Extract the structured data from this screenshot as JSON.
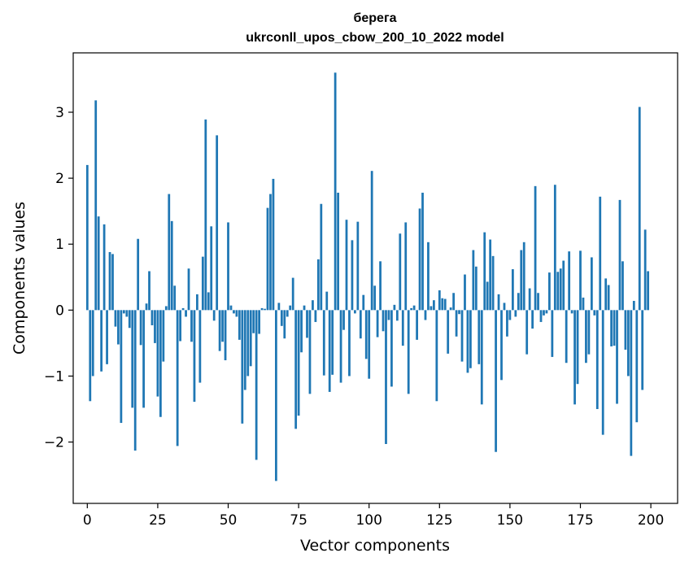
{
  "chart_data": {
    "type": "bar",
    "title_line1": "берега",
    "title_line2": "ukrconll_upos_cbow_200_10_2022 model",
    "xlabel": "Vector components",
    "ylabel": "Components values",
    "xlim": [
      -5,
      209.5
    ],
    "ylim": [
      -2.93,
      3.9
    ],
    "xticks": [
      0,
      25,
      50,
      75,
      100,
      125,
      150,
      175,
      200
    ],
    "yticks": [
      -2,
      -1,
      0,
      1,
      2,
      3
    ],
    "ytick_labels": [
      "−2",
      "−1",
      "0",
      "1",
      "2",
      "3"
    ],
    "grid": false,
    "bar_color": "#1f77b4",
    "values": [
      2.2,
      -1.38,
      -1.0,
      3.18,
      1.42,
      -0.93,
      1.3,
      -0.82,
      0.88,
      0.85,
      -0.25,
      -0.52,
      -1.71,
      -0.05,
      -0.1,
      -0.27,
      -1.48,
      -2.13,
      1.08,
      -0.53,
      -1.48,
      0.1,
      0.59,
      -0.23,
      -0.5,
      -1.31,
      -1.62,
      -0.78,
      0.06,
      1.76,
      1.35,
      0.37,
      -2.06,
      -0.47,
      0.03,
      -0.1,
      0.63,
      -0.48,
      -1.39,
      0.24,
      -1.1,
      0.81,
      2.89,
      0.27,
      1.27,
      -0.16,
      2.65,
      -0.62,
      -0.48,
      -0.76,
      1.33,
      0.07,
      -0.05,
      -0.1,
      -0.45,
      -1.72,
      -1.21,
      -1.0,
      -0.85,
      -0.35,
      -2.27,
      -0.36,
      0.03,
      0.02,
      1.55,
      1.76,
      1.99,
      -2.59,
      0.11,
      -0.24,
      -0.43,
      -0.1,
      0.07,
      0.49,
      -1.8,
      -1.6,
      -0.64,
      0.07,
      -0.42,
      -1.27,
      0.15,
      -0.18,
      0.77,
      1.61,
      -0.99,
      0.28,
      -1.24,
      -0.98,
      3.6,
      1.78,
      -1.1,
      -0.3,
      1.37,
      -1.0,
      1.06,
      -0.05,
      1.34,
      -0.43,
      0.23,
      -0.74,
      -1.04,
      2.11,
      0.37,
      -0.41,
      0.74,
      -0.32,
      -2.03,
      -0.15,
      -1.16,
      0.08,
      -0.16,
      1.16,
      -0.54,
      1.33,
      -1.27,
      0.03,
      0.07,
      -0.45,
      1.54,
      1.78,
      -0.15,
      1.03,
      0.06,
      0.15,
      -1.38,
      0.3,
      0.18,
      0.17,
      -0.66,
      0.04,
      0.26,
      -0.4,
      -0.06,
      -0.78,
      0.54,
      -0.95,
      -0.88,
      0.91,
      0.66,
      -0.82,
      -1.43,
      1.18,
      0.43,
      1.07,
      0.82,
      -2.15,
      0.24,
      -1.06,
      0.11,
      -0.4,
      -0.15,
      0.62,
      -0.1,
      0.26,
      0.91,
      1.03,
      -0.67,
      0.33,
      -0.28,
      1.88,
      0.26,
      -0.18,
      -0.08,
      -0.05,
      0.57,
      -0.71,
      1.9,
      0.58,
      0.63,
      0.75,
      -0.8,
      0.89,
      -0.05,
      -1.43,
      -1.12,
      0.9,
      0.19,
      -0.8,
      -0.67,
      0.8,
      -0.08,
      -1.5,
      1.72,
      -1.89,
      0.48,
      0.38,
      -0.55,
      -0.54,
      -1.42,
      1.67,
      0.74,
      -0.6,
      -1.0,
      -2.21,
      0.14,
      -1.7,
      3.08,
      -1.21,
      1.22,
      0.59
    ]
  }
}
